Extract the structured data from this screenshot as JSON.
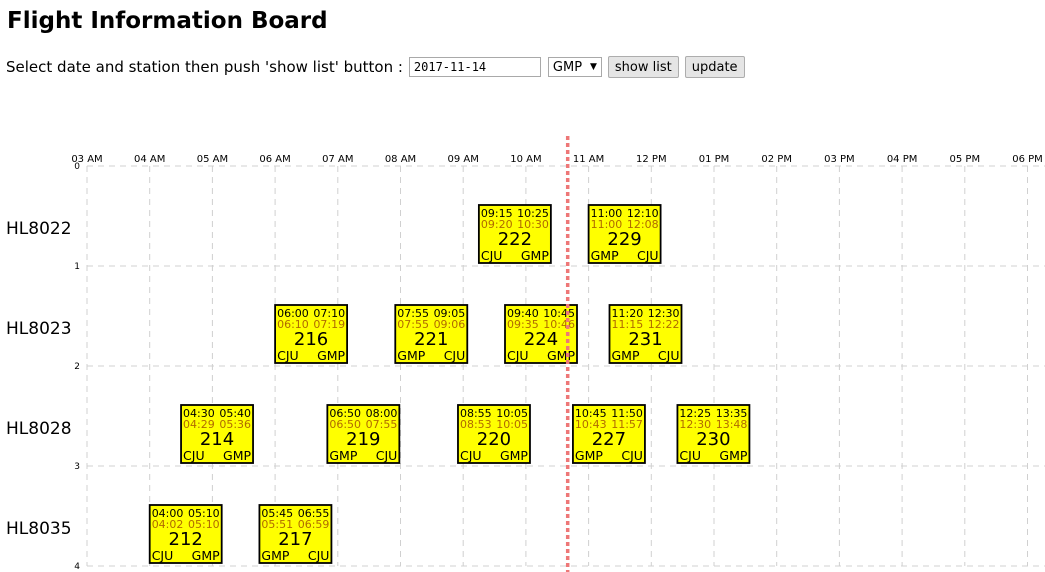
{
  "header": {
    "title": "Flight Information Board"
  },
  "controls": {
    "prompt": "Select date and station then push 'show list' button :",
    "date_value": "2017-11-14",
    "station_selected": "GMP",
    "show_list_label": "show list",
    "update_label": "update"
  },
  "board": {
    "time_labels": [
      "03 AM",
      "04 AM",
      "05 AM",
      "06 AM",
      "07 AM",
      "08 AM",
      "09 AM",
      "10 AM",
      "11 AM",
      "12 PM",
      "01 PM",
      "02 PM",
      "03 PM",
      "04 PM",
      "05 PM",
      "06 PM"
    ],
    "row_ticks": [
      "0",
      "1",
      "2",
      "3",
      "4"
    ],
    "current_time": "10:40",
    "rows": [
      {
        "aircraft": "HL8022",
        "flights": [
          {
            "number": "222",
            "sched_dep": "09:15",
            "sched_arr": "10:25",
            "act_dep": "09:20",
            "act_arr": "10:30",
            "from": "CJU",
            "to": "GMP"
          },
          {
            "number": "229",
            "sched_dep": "11:00",
            "sched_arr": "12:10",
            "act_dep": "11:00",
            "act_arr": "12:08",
            "from": "GMP",
            "to": "CJU"
          }
        ]
      },
      {
        "aircraft": "HL8023",
        "flights": [
          {
            "number": "216",
            "sched_dep": "06:00",
            "sched_arr": "07:10",
            "act_dep": "06:10",
            "act_arr": "07:19",
            "from": "CJU",
            "to": "GMP"
          },
          {
            "number": "221",
            "sched_dep": "07:55",
            "sched_arr": "09:05",
            "act_dep": "07:55",
            "act_arr": "09:06",
            "from": "GMP",
            "to": "CJU"
          },
          {
            "number": "224",
            "sched_dep": "09:40",
            "sched_arr": "10:45",
            "act_dep": "09:35",
            "act_arr": "10:46",
            "from": "CJU",
            "to": "GMP"
          },
          {
            "number": "231",
            "sched_dep": "11:20",
            "sched_arr": "12:30",
            "act_dep": "11:15",
            "act_arr": "12:22",
            "from": "GMP",
            "to": "CJU"
          }
        ]
      },
      {
        "aircraft": "HL8028",
        "flights": [
          {
            "number": "214",
            "sched_dep": "04:30",
            "sched_arr": "05:40",
            "act_dep": "04:29",
            "act_arr": "05:36",
            "from": "CJU",
            "to": "GMP"
          },
          {
            "number": "219",
            "sched_dep": "06:50",
            "sched_arr": "08:00",
            "act_dep": "06:50",
            "act_arr": "07:55",
            "from": "GMP",
            "to": "CJU"
          },
          {
            "number": "220",
            "sched_dep": "08:55",
            "sched_arr": "10:05",
            "act_dep": "08:53",
            "act_arr": "10:05",
            "from": "CJU",
            "to": "GMP"
          },
          {
            "number": "227",
            "sched_dep": "10:45",
            "sched_arr": "11:50",
            "act_dep": "10:43",
            "act_arr": "11:57",
            "from": "GMP",
            "to": "CJU"
          },
          {
            "number": "230",
            "sched_dep": "12:25",
            "sched_arr": "13:35",
            "act_dep": "12:30",
            "act_arr": "13:48",
            "from": "CJU",
            "to": "GMP"
          }
        ]
      },
      {
        "aircraft": "HL8035",
        "flights": [
          {
            "number": "212",
            "sched_dep": "04:00",
            "sched_arr": "05:10",
            "act_dep": "04:02",
            "act_arr": "05:10",
            "from": "CJU",
            "to": "GMP"
          },
          {
            "number": "217",
            "sched_dep": "05:45",
            "sched_arr": "06:55",
            "act_dep": "05:51",
            "act_arr": "06:59",
            "from": "GMP",
            "to": "CJU"
          }
        ]
      }
    ]
  }
}
